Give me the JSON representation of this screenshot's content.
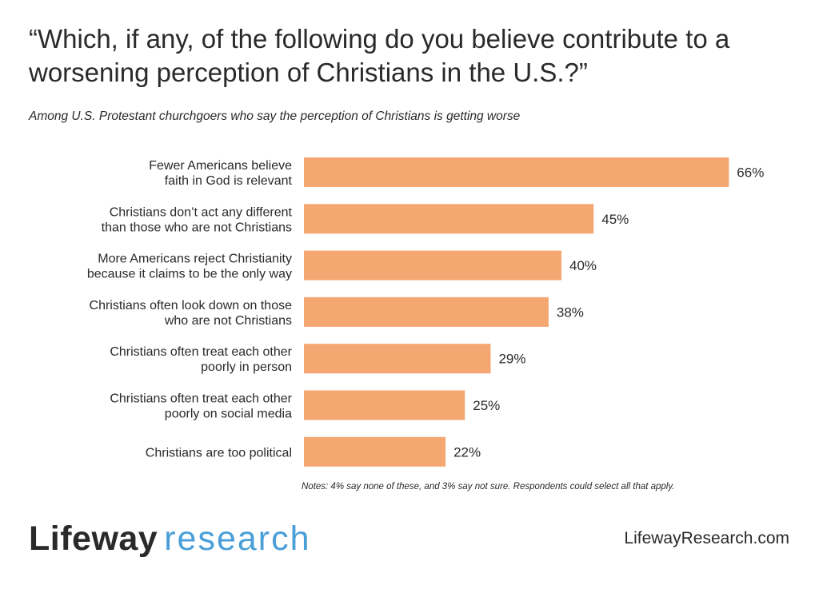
{
  "title": "“Which, if any, of the following do you believe contribute to a worsening perception of Christians in the U.S.?”",
  "subtitle": "Among U.S. Protestant churchgoers who say the perception of Christians is getting worse",
  "notes": "Notes: 4% say none of these, and 3% say not sure. Respondents could select all that apply.",
  "logo": {
    "brand": "Lifeway",
    "sub": "research"
  },
  "url": "LifewayResearch.com",
  "colors": {
    "bar": "#f4a771",
    "text": "#2b2929",
    "accent": "#4a9fd8"
  },
  "chart_data": {
    "type": "bar",
    "orientation": "horizontal",
    "categories": [
      [
        "Fewer Americans believe",
        "faith in God is relevant"
      ],
      [
        "Christians don’t act any different",
        "than those who are not Christians"
      ],
      [
        "More Americans reject Christianity",
        "because it claims to be the only way"
      ],
      [
        "Christians often look down on those",
        "who are not Christians"
      ],
      [
        "Christians often treat each other",
        "poorly in person"
      ],
      [
        "Christians often treat each other",
        "poorly on social media"
      ],
      [
        "Christians are too political"
      ]
    ],
    "values": [
      66,
      45,
      40,
      38,
      29,
      25,
      22
    ],
    "value_labels": [
      "66%",
      "45%",
      "40%",
      "38%",
      "29%",
      "25%",
      "22%"
    ],
    "xlim": [
      0,
      100
    ]
  }
}
